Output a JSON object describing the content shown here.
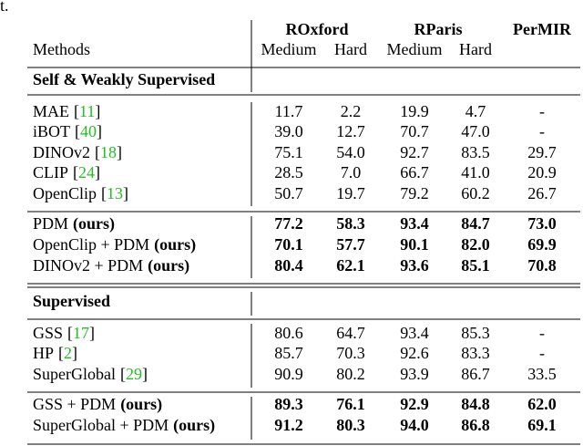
{
  "fragment": "t.",
  "header": {
    "groups": [
      "ROxford",
      "RParis",
      "PerMIR"
    ],
    "columns": [
      "Methods",
      "Medium",
      "Hard",
      "Medium",
      "Hard"
    ]
  },
  "sections": [
    {
      "title": "Self & Weakly Supervised",
      "blocks": [
        [
          {
            "method": "MAE",
            "ref": "[11]",
            "values": [
              "11.7",
              "2.2",
              "19.9",
              "4.7",
              "-"
            ]
          },
          {
            "method": "iBOT",
            "ref": "[40]",
            "values": [
              "39.0",
              "12.7",
              "70.7",
              "47.0",
              "-"
            ]
          },
          {
            "method": "DINOv2",
            "ref": "[18]",
            "values": [
              "75.1",
              "54.0",
              "92.7",
              "83.5",
              "29.7"
            ]
          },
          {
            "method": "CLIP",
            "ref": "[24]",
            "values": [
              "28.5",
              "7.0",
              "66.7",
              "41.0",
              "20.9"
            ]
          },
          {
            "method": "OpenClip",
            "ref": "[13]",
            "values": [
              "50.7",
              "19.7",
              "79.2",
              "60.2",
              "26.7"
            ]
          }
        ],
        [
          {
            "method": "PDM",
            "ours": "(ours)",
            "bold": true,
            "values": [
              "77.2",
              "58.3",
              "93.4",
              "84.7",
              "73.0"
            ]
          },
          {
            "method": "OpenClip + PDM",
            "ours": "(ours)",
            "bold": true,
            "values": [
              "70.1",
              "57.7",
              "90.1",
              "82.0",
              "69.9"
            ]
          },
          {
            "method": "DINOv2 + PDM",
            "ours": "(ours)",
            "bold": true,
            "values": [
              "80.4",
              "62.1",
              "93.6",
              "85.1",
              "70.8"
            ]
          }
        ]
      ]
    },
    {
      "title": "Supervised",
      "blocks": [
        [
          {
            "method": "GSS",
            "ref": "[17]",
            "values": [
              "80.6",
              "64.7",
              "93.4",
              "85.3",
              "-"
            ]
          },
          {
            "method": "HP",
            "ref": "[2]",
            "values": [
              "85.7",
              "70.3",
              "92.6",
              "83.3",
              "-"
            ]
          },
          {
            "method": "SuperGlobal",
            "ref": "[29]",
            "values": [
              "90.9",
              "80.2",
              "93.9",
              "86.7",
              "33.5"
            ]
          }
        ],
        [
          {
            "method": "GSS + PDM",
            "ours": "(ours)",
            "bold": true,
            "values": [
              "89.3",
              "76.1",
              "92.9",
              "84.8",
              "62.0"
            ]
          },
          {
            "method": "SuperGlobal + PDM",
            "ours": "(ours)",
            "bold": true,
            "values": [
              "91.2",
              "80.3",
              "94.0",
              "86.8",
              "69.1"
            ]
          }
        ]
      ]
    }
  ]
}
